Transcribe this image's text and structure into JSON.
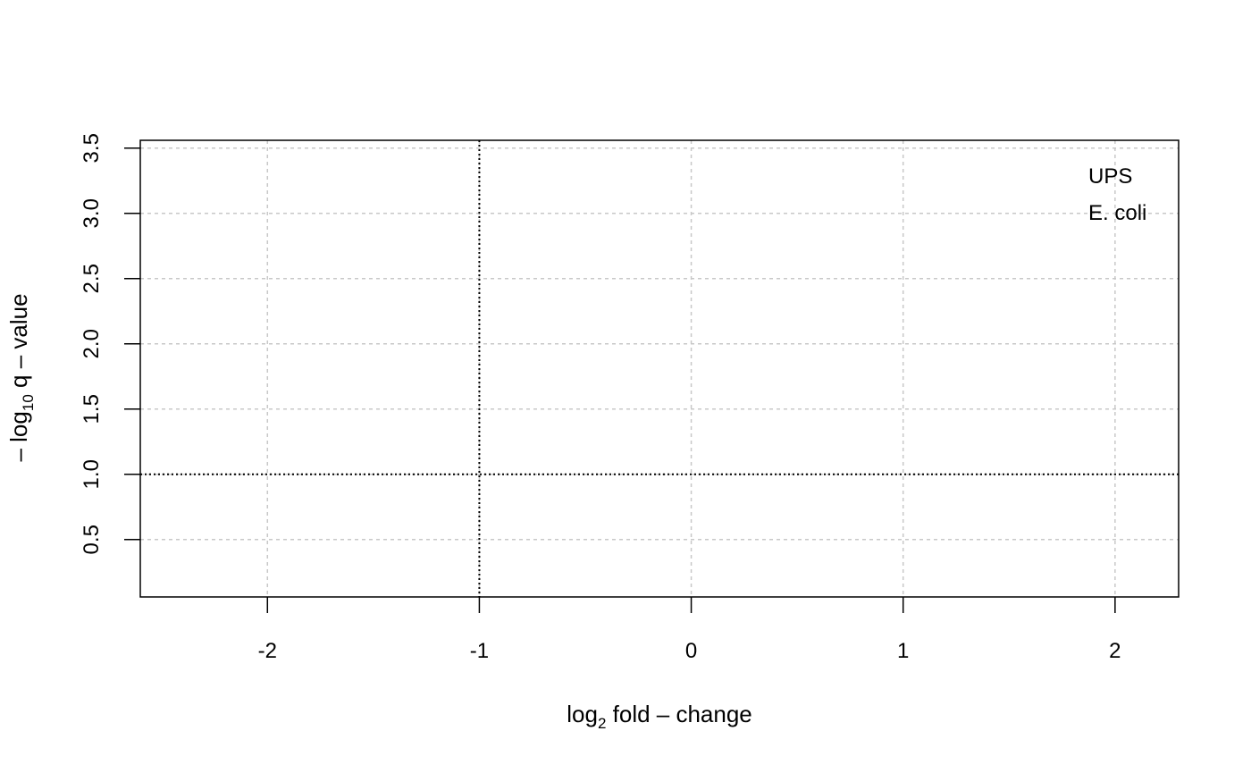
{
  "chart_data": {
    "type": "scatter",
    "xlabel": {
      "prefix": "log",
      "sub": "2",
      "suffix": " fold – change"
    },
    "ylabel": {
      "prefix": "– log",
      "sub": "10",
      "suffix": " q – value"
    },
    "xlim": [
      -2.6,
      2.3
    ],
    "ylim": [
      0.06,
      3.56
    ],
    "x_ticks": [
      -2,
      -1,
      0,
      1,
      2
    ],
    "x_tick_labels": [
      "-2",
      "-1",
      "0",
      "1",
      "2"
    ],
    "y_ticks": [
      0.5,
      1.0,
      1.5,
      2.0,
      2.5,
      3.0,
      3.5
    ],
    "y_tick_labels": [
      "0.5",
      "1.0",
      "1.5",
      "2.0",
      "2.5",
      "3.0",
      "3.5"
    ],
    "grid": true,
    "threshold_lines": {
      "vertical_x": -1,
      "horizontal_y": 1.0
    },
    "legend": {
      "position": "top-right",
      "entries": [
        "UPS",
        "E. coli"
      ]
    },
    "series": [
      {
        "name": "UPS",
        "x": [],
        "y": []
      },
      {
        "name": "E. coli",
        "x": [],
        "y": []
      }
    ]
  }
}
